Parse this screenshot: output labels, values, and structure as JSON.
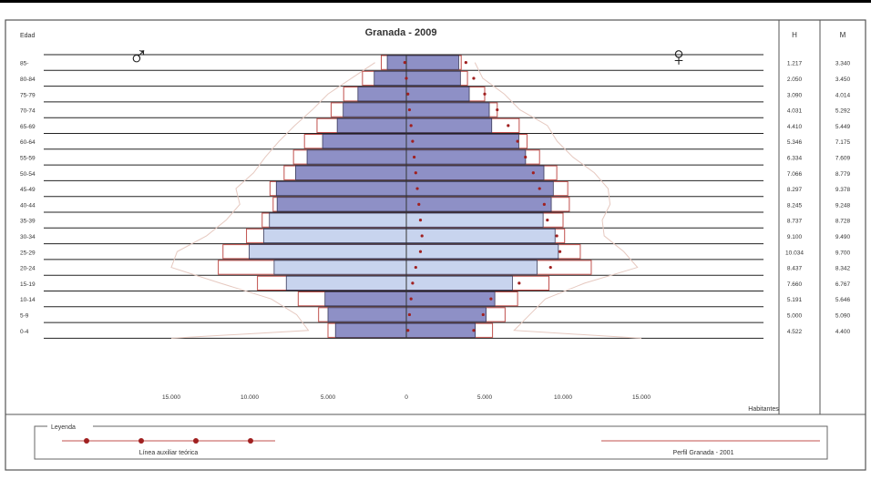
{
  "chart_data": {
    "type": "bar",
    "title": "Granada - 2009",
    "age_header": "Edad",
    "symbols": {
      "male": "♂",
      "female": "♀"
    },
    "male_column_header": "H",
    "female_column_header": "M",
    "axis_unit_label": "Habitantes",
    "age_groups": [
      "85-",
      "80-84",
      "75-79",
      "70-74",
      "65-69",
      "60-64",
      "55-59",
      "50-54",
      "45-49",
      "40-44",
      "35-39",
      "30-34",
      "25-29",
      "20-24",
      "15-19",
      "10-14",
      "5-9",
      "0-4"
    ],
    "x_ticks": [
      -15000,
      -10000,
      -5000,
      0,
      5000,
      10000,
      15000
    ],
    "x_tick_labels": [
      "15.000",
      "10.000",
      "5.000",
      "0",
      "5.000",
      "10.000",
      "15.000"
    ],
    "xlim": [
      -16500,
      16500
    ],
    "series": [
      {
        "name": "Hombres",
        "values": [
          1217,
          2050,
          3090,
          4031,
          4410,
          5346,
          6334,
          7066,
          8297,
          8245,
          8737,
          9100,
          10034,
          8437,
          7660,
          5191,
          5000,
          4522
        ]
      },
      {
        "name": "Mujeres",
        "values": [
          3340,
          3450,
          4014,
          5292,
          5449,
          7175,
          7609,
          8779,
          9378,
          9248,
          8728,
          9490,
          9700,
          8342,
          6767,
          5646,
          5090,
          4400
        ]
      }
    ],
    "male_labels": [
      "1.217",
      "2.050",
      "3.090",
      "4.031",
      "4.410",
      "5.346",
      "6.334",
      "7.066",
      "8.297",
      "8.245",
      "8.737",
      "9.100",
      "10.034",
      "8.437",
      "7.660",
      "5.191",
      "5.000",
      "4.522"
    ],
    "female_labels": [
      "3.340",
      "3.450",
      "4.014",
      "5.292",
      "5.449",
      "7.175",
      "7.609",
      "8.779",
      "9.378",
      "9.248",
      "8.728",
      "9.490",
      "9.700",
      "8.342",
      "6.767",
      "5.646",
      "5.090",
      "4.400"
    ],
    "comparison_outline": {
      "male": [
        1600,
        2800,
        4000,
        4800,
        5700,
        6500,
        7200,
        7800,
        8700,
        8500,
        9200,
        10200,
        11700,
        12000,
        9500,
        6900,
        5600,
        5000
      ],
      "female": [
        3500,
        3900,
        5000,
        5800,
        7200,
        7700,
        8500,
        9600,
        10300,
        10400,
        10000,
        10100,
        11100,
        11800,
        9100,
        7100,
        6300,
        5500
      ]
    },
    "reference_dots": {
      "male": [
        -100,
        0,
        100,
        200,
        300,
        400,
        500,
        600,
        700,
        800,
        900,
        1000,
        900,
        600,
        400,
        300,
        200,
        100
      ],
      "female": [
        3800,
        4300,
        5000,
        5800,
        6500,
        7100,
        7600,
        8100,
        8500,
        8800,
        9000,
        9600,
        9800,
        9200,
        7200,
        5400,
        4900,
        4300
      ]
    },
    "legend": {
      "title": "Leyenda",
      "item1": "Línea auxiliar teórica",
      "item2": "Perfil Granada - 2001"
    },
    "colors": {
      "bar_dark": "#8e90c6",
      "bar_light": "#c8d4ee",
      "bar_stroke": "#3a3a5a",
      "outline": "#c0504d",
      "dots": "#a02020",
      "grid": "#222222"
    }
  }
}
